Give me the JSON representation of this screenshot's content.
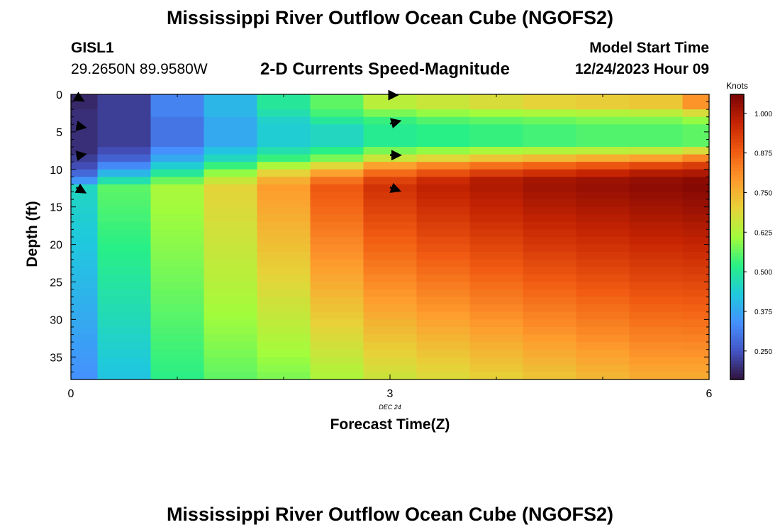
{
  "header": {
    "title": "Mississippi River Outflow Ocean Cube (NGOFS2)",
    "station": "GISL1",
    "coordinates": "29.2650N  89.9580W",
    "subtitle": "2-D Currents Speed-Magnitude",
    "start_label": "Model Start Time",
    "start_time": "12/24/2023 Hour 09"
  },
  "footer": {
    "title": "Mississippi River Outflow Ocean Cube (NGOFS2)"
  },
  "colors": {
    "colormap": [
      "#30123b",
      "#4454c4",
      "#4590fe",
      "#1fc9dd",
      "#28ef86",
      "#a2fc3c",
      "#e6d339",
      "#fe9b2d",
      "#f15c12",
      "#c62402",
      "#7a0403"
    ]
  },
  "chart_data": {
    "type": "heatmap",
    "xlabel": "Forecast Time(Z)",
    "ylabel": "Depth (ft)",
    "xlim": [
      0,
      6
    ],
    "ylim": [
      38,
      0
    ],
    "xticks": [
      0,
      3,
      6
    ],
    "yticks": [
      0,
      5,
      10,
      15,
      20,
      25,
      30,
      35
    ],
    "date_label": "DEC 24",
    "date_label_x": 3,
    "colorbar": {
      "label": "Knots",
      "min": 0.16,
      "max": 1.06,
      "ticks": [
        0.25,
        0.375,
        0.5,
        0.625,
        0.75,
        0.875,
        1.0
      ],
      "tick_labels": [
        "0.250",
        "0.375",
        "0.500",
        "0.625",
        "0.750",
        "0.875",
        "1.000"
      ]
    },
    "times": [
      0,
      0.5,
      1,
      1.5,
      2,
      2.5,
      3,
      3.5,
      4,
      4.5,
      5,
      5.5,
      6
    ],
    "depth_bands": [
      {
        "top": 0,
        "bottom": 2,
        "values": [
          0.19,
          0.22,
          0.32,
          0.4,
          0.5,
          0.56,
          0.64,
          0.66,
          0.68,
          0.7,
          0.71,
          0.72,
          0.8
        ]
      },
      {
        "top": 2,
        "bottom": 3,
        "values": [
          0.2,
          0.22,
          0.32,
          0.4,
          0.48,
          0.54,
          0.58,
          0.6,
          0.61,
          0.62,
          0.63,
          0.64,
          0.68
        ]
      },
      {
        "top": 3,
        "bottom": 4,
        "values": [
          0.2,
          0.22,
          0.3,
          0.38,
          0.45,
          0.5,
          0.53,
          0.55,
          0.56,
          0.57,
          0.58,
          0.58,
          0.6
        ]
      },
      {
        "top": 4,
        "bottom": 7,
        "values": [
          0.2,
          0.22,
          0.3,
          0.38,
          0.44,
          0.46,
          0.51,
          0.52,
          0.53,
          0.54,
          0.55,
          0.55,
          0.56
        ]
      },
      {
        "top": 7,
        "bottom": 8,
        "values": [
          0.2,
          0.24,
          0.34,
          0.42,
          0.48,
          0.52,
          0.58,
          0.6,
          0.62,
          0.63,
          0.64,
          0.65,
          0.68
        ]
      },
      {
        "top": 8,
        "bottom": 9,
        "values": [
          0.22,
          0.27,
          0.38,
          0.46,
          0.53,
          0.58,
          0.66,
          0.69,
          0.72,
          0.74,
          0.76,
          0.78,
          0.82
        ]
      },
      {
        "top": 9,
        "bottom": 10,
        "values": [
          0.24,
          0.33,
          0.44,
          0.53,
          0.62,
          0.69,
          0.78,
          0.82,
          0.85,
          0.87,
          0.89,
          0.91,
          0.93
        ]
      },
      {
        "top": 10,
        "bottom": 11,
        "values": [
          0.28,
          0.4,
          0.5,
          0.6,
          0.7,
          0.78,
          0.86,
          0.9,
          0.93,
          0.95,
          0.97,
          0.99,
          1.0
        ]
      },
      {
        "top": 11,
        "bottom": 12,
        "values": [
          0.35,
          0.48,
          0.57,
          0.66,
          0.76,
          0.85,
          0.92,
          0.96,
          0.99,
          1.01,
          1.02,
          1.03,
          1.04
        ]
      },
      {
        "top": 12,
        "bottom": 38,
        "values": [
          0.46,
          0.56,
          0.62,
          0.7,
          0.79,
          0.89,
          0.95,
          0.98,
          1.0,
          1.02,
          1.03,
          1.04,
          1.05
        ]
      }
    ],
    "deep_band_bottom_values": [
      0.34,
      0.42,
      0.52,
      0.56,
      0.58,
      0.62,
      0.66,
      0.68,
      0.7,
      0.72,
      0.74,
      0.76,
      0.76
    ],
    "vectors": [
      {
        "time": 0.05,
        "depth": 0.3,
        "angle_deg": 30,
        "length_knots": 0.3
      },
      {
        "time": 0.05,
        "depth": 4.2,
        "angle_deg": 10,
        "length_knots": 0.35
      },
      {
        "time": 0.05,
        "depth": 8.2,
        "angle_deg": -10,
        "length_knots": 0.35
      },
      {
        "time": 0.05,
        "depth": 12.4,
        "angle_deg": 30,
        "length_knots": 0.4
      },
      {
        "time": 3.0,
        "depth": 0.1,
        "angle_deg": 0,
        "length_knots": 0.25
      },
      {
        "time": 3.0,
        "depth": 3.9,
        "angle_deg": -15,
        "length_knots": 0.4
      },
      {
        "time": 3.0,
        "depth": 8.1,
        "angle_deg": 0,
        "length_knots": 0.4
      },
      {
        "time": 3.0,
        "depth": 12.4,
        "angle_deg": 20,
        "length_knots": 0.4
      }
    ]
  }
}
